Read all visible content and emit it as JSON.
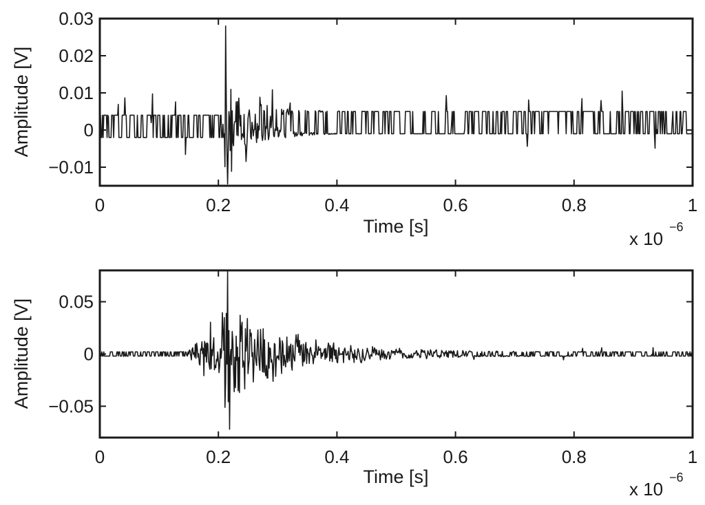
{
  "chart_data": [
    {
      "type": "line",
      "xlabel": "Time [s]",
      "ylabel": "Amplitude [V]",
      "x_multiplier_label": "x 10",
      "x_multiplier_exponent": "−6",
      "xlim": [
        0,
        1
      ],
      "ylim": [
        -0.015,
        0.03
      ],
      "xticks": [
        0,
        0.2,
        0.4,
        0.6,
        0.8,
        1
      ],
      "xtick_labels": [
        "0",
        "0.2",
        "0.4",
        "0.6",
        "0.8",
        "1"
      ],
      "yticks": [
        -0.01,
        0,
        0.01,
        0.02,
        0.03
      ],
      "ytick_labels": [
        "−0.01",
        "0",
        "0.01",
        "0.02",
        "0.03"
      ],
      "grid": false,
      "series": [
        {
          "color": "#1a1a1a",
          "signal": {
            "baseline": 0.001,
            "noise_levels": [
              -0.002,
              0.004
            ],
            "noise_rate": 0.55,
            "spike_amplitude": 0.004,
            "burst_start": 0.21,
            "burst_peak": 0.212,
            "burst_peak_value": 0.028,
            "burst_min_value": -0.0145,
            "burst_amplitude": 0.018,
            "burst_decay": 0.04,
            "samples": 900
          }
        }
      ]
    },
    {
      "type": "line",
      "xlabel": "Time [s]",
      "ylabel": "Amplitude [V]",
      "x_multiplier_label": "x 10",
      "x_multiplier_exponent": "−6",
      "xlim": [
        0,
        1
      ],
      "ylim": [
        -0.08,
        0.08
      ],
      "xticks": [
        0,
        0.2,
        0.4,
        0.6,
        0.8,
        1
      ],
      "xtick_labels": [
        "0",
        "0.2",
        "0.4",
        "0.6",
        "0.8",
        "1"
      ],
      "yticks": [
        -0.05,
        0,
        0.05
      ],
      "ytick_labels": [
        "−0.05",
        "0",
        "0.05"
      ],
      "grid": false,
      "series": [
        {
          "color": "#1a1a1a",
          "signal": {
            "baseline": 0.0,
            "noise_levels": [
              -0.002,
              0.002
            ],
            "noise_rate": 0.6,
            "spike_amplitude": 0.003,
            "burst_start": 0.145,
            "burst_peak": 0.215,
            "burst_peak_value": 0.079,
            "burst_min_value": -0.072,
            "burst_amplitude": 0.055,
            "burst_decay": 0.11,
            "samples": 900
          }
        }
      ]
    }
  ]
}
